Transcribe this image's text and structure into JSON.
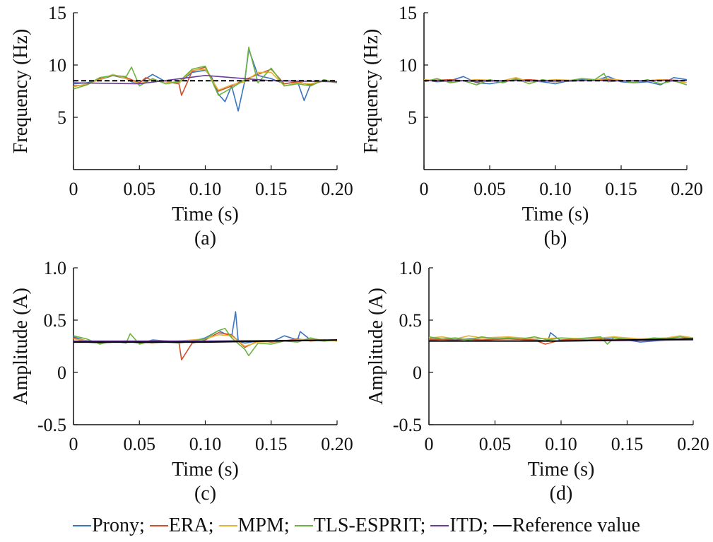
{
  "chart_data": [
    {
      "id": "a",
      "type": "line",
      "panel_label": "(a)",
      "xlabel": "Time (s)",
      "ylabel": "Frequency (Hz)",
      "xlim": [
        0,
        0.2
      ],
      "ylim": [
        0,
        15
      ],
      "xticks": [
        0,
        0.05,
        0.1,
        0.15,
        0.2
      ],
      "xtick_labels": [
        "0",
        "0.05",
        "0.10",
        "0.15",
        "0.20"
      ],
      "yticks": [
        5,
        10,
        15
      ],
      "ytick_labels": [
        "5",
        "10",
        "15"
      ],
      "reference": {
        "name": "Reference value",
        "style": "dashed",
        "x": [
          0,
          0.2
        ],
        "values": [
          8.5,
          8.5
        ]
      },
      "series": [
        {
          "name": "Prony",
          "x": [
            0,
            0.01,
            0.02,
            0.03,
            0.04,
            0.044,
            0.05,
            0.06,
            0.07,
            0.08,
            0.09,
            0.1,
            0.105,
            0.11,
            0.115,
            0.12,
            0.125,
            0.13,
            0.133,
            0.14,
            0.15,
            0.16,
            0.17,
            0.175,
            0.18,
            0.19,
            0.2
          ],
          "values": [
            8.2,
            8.3,
            8.6,
            9.0,
            8.7,
            8.4,
            8.3,
            9.1,
            8.4,
            8.3,
            9.3,
            9.5,
            8.8,
            7.2,
            6.5,
            8.0,
            5.6,
            8.5,
            11.5,
            9.0,
            8.7,
            8.2,
            8.4,
            6.6,
            8.2,
            8.5,
            8.4
          ]
        },
        {
          "name": "ERA",
          "x": [
            0,
            0.01,
            0.02,
            0.03,
            0.04,
            0.05,
            0.055,
            0.06,
            0.07,
            0.08,
            0.082,
            0.09,
            0.1,
            0.11,
            0.12,
            0.13,
            0.14,
            0.15,
            0.16,
            0.17,
            0.18,
            0.19,
            0.2
          ],
          "values": [
            8.0,
            8.1,
            8.7,
            9.0,
            8.8,
            8.3,
            8.8,
            8.5,
            8.4,
            8.2,
            7.1,
            9.4,
            9.8,
            7.5,
            8.0,
            8.6,
            9.1,
            9.6,
            8.2,
            8.4,
            8.1,
            8.5,
            8.4
          ]
        },
        {
          "name": "MPM",
          "x": [
            0,
            0.01,
            0.02,
            0.03,
            0.04,
            0.05,
            0.06,
            0.07,
            0.08,
            0.09,
            0.1,
            0.11,
            0.12,
            0.13,
            0.14,
            0.15,
            0.16,
            0.17,
            0.18,
            0.19,
            0.2
          ],
          "values": [
            7.9,
            8.2,
            8.6,
            9.1,
            8.7,
            8.2,
            8.6,
            8.4,
            8.3,
            9.5,
            9.6,
            7.6,
            8.1,
            8.4,
            9.3,
            9.3,
            8.0,
            8.3,
            8.2,
            8.5,
            8.3
          ]
        },
        {
          "name": "TLS-ESPRIT",
          "x": [
            0,
            0.01,
            0.02,
            0.03,
            0.04,
            0.044,
            0.05,
            0.06,
            0.07,
            0.08,
            0.09,
            0.1,
            0.11,
            0.12,
            0.13,
            0.133,
            0.14,
            0.15,
            0.16,
            0.17,
            0.18,
            0.19,
            0.2
          ],
          "values": [
            7.7,
            8.1,
            8.8,
            9.0,
            8.9,
            9.8,
            8.0,
            8.7,
            8.2,
            8.4,
            9.6,
            9.9,
            7.1,
            7.8,
            8.6,
            11.7,
            8.3,
            9.7,
            8.0,
            8.2,
            8.0,
            8.6,
            8.3
          ]
        },
        {
          "name": "ITD",
          "x": [
            0,
            0.05,
            0.1,
            0.15,
            0.2
          ],
          "values": [
            8.3,
            8.2,
            9.0,
            8.5,
            8.4
          ]
        }
      ]
    },
    {
      "id": "b",
      "type": "line",
      "panel_label": "(b)",
      "xlabel": "Time (s)",
      "ylabel": "Frequency (Hz)",
      "xlim": [
        0,
        0.2
      ],
      "ylim": [
        0,
        15
      ],
      "xticks": [
        0,
        0.05,
        0.1,
        0.15,
        0.2
      ],
      "xtick_labels": [
        "0",
        "0.05",
        "0.10",
        "0.15",
        "0.20"
      ],
      "yticks": [
        5,
        10,
        15
      ],
      "ytick_labels": [
        "5",
        "10",
        "15"
      ],
      "reference": {
        "name": "Reference value",
        "style": "dashed",
        "x": [
          0,
          0.2
        ],
        "values": [
          8.5,
          8.5
        ]
      },
      "series": [
        {
          "name": "Prony",
          "x": [
            0,
            0.01,
            0.02,
            0.03,
            0.04,
            0.05,
            0.06,
            0.07,
            0.08,
            0.09,
            0.1,
            0.11,
            0.12,
            0.13,
            0.14,
            0.15,
            0.16,
            0.17,
            0.18,
            0.19,
            0.2
          ],
          "values": [
            8.6,
            8.4,
            8.5,
            8.9,
            8.3,
            8.2,
            8.4,
            8.6,
            8.5,
            8.4,
            8.2,
            8.5,
            8.6,
            8.5,
            8.9,
            8.4,
            8.3,
            8.4,
            8.1,
            8.8,
            8.6
          ]
        },
        {
          "name": "ERA",
          "x": [
            0,
            0.02,
            0.04,
            0.06,
            0.08,
            0.1,
            0.12,
            0.14,
            0.16,
            0.18,
            0.2
          ],
          "values": [
            8.5,
            8.6,
            8.4,
            8.5,
            8.6,
            8.4,
            8.5,
            8.6,
            8.4,
            8.6,
            8.5
          ]
        },
        {
          "name": "MPM",
          "x": [
            0,
            0.02,
            0.04,
            0.06,
            0.07,
            0.08,
            0.1,
            0.12,
            0.14,
            0.16,
            0.18,
            0.2
          ],
          "values": [
            8.6,
            8.4,
            8.6,
            8.5,
            8.8,
            8.4,
            8.6,
            8.5,
            8.7,
            8.4,
            8.6,
            8.3
          ]
        },
        {
          "name": "TLS-ESPRIT",
          "x": [
            0,
            0.01,
            0.02,
            0.03,
            0.04,
            0.05,
            0.06,
            0.07,
            0.08,
            0.09,
            0.1,
            0.11,
            0.12,
            0.13,
            0.137,
            0.14,
            0.15,
            0.16,
            0.17,
            0.18,
            0.19,
            0.2
          ],
          "values": [
            8.4,
            8.7,
            8.3,
            8.5,
            8.1,
            8.6,
            8.3,
            8.7,
            8.2,
            8.6,
            8.4,
            8.5,
            8.7,
            8.6,
            9.2,
            8.4,
            8.5,
            8.3,
            8.6,
            8.2,
            8.5,
            8.1
          ]
        },
        {
          "name": "ITD",
          "x": [
            0,
            0.1,
            0.2
          ],
          "values": [
            8.5,
            8.5,
            8.5
          ]
        }
      ]
    },
    {
      "id": "c",
      "type": "line",
      "panel_label": "(c)",
      "xlabel": "Time (s)",
      "ylabel": "Amplitude (A)",
      "xlim": [
        0,
        0.2
      ],
      "ylim": [
        -0.5,
        1.0
      ],
      "xticks": [
        0,
        0.05,
        0.1,
        0.15,
        0.2
      ],
      "xtick_labels": [
        "0",
        "0.05",
        "0.10",
        "0.15",
        "0.20"
      ],
      "yticks": [
        -0.5,
        0,
        0.5,
        1.0
      ],
      "ytick_labels": [
        "-0.5",
        "0",
        "0.5",
        "1.0"
      ],
      "reference": {
        "name": "Reference value",
        "style": "solid",
        "x": [
          0,
          0.05,
          0.1,
          0.15,
          0.2
        ],
        "values": [
          0.29,
          0.29,
          0.29,
          0.3,
          0.31
        ]
      },
      "series": [
        {
          "name": "Prony",
          "x": [
            0,
            0.01,
            0.02,
            0.03,
            0.04,
            0.05,
            0.06,
            0.07,
            0.08,
            0.09,
            0.1,
            0.11,
            0.12,
            0.123,
            0.125,
            0.13,
            0.14,
            0.15,
            0.16,
            0.17,
            0.172,
            0.18,
            0.19,
            0.2
          ],
          "values": [
            0.34,
            0.3,
            0.28,
            0.29,
            0.3,
            0.28,
            0.31,
            0.3,
            0.29,
            0.3,
            0.33,
            0.4,
            0.34,
            0.58,
            0.3,
            0.28,
            0.3,
            0.29,
            0.35,
            0.31,
            0.39,
            0.31,
            0.3,
            0.31
          ]
        },
        {
          "name": "ERA",
          "x": [
            0,
            0.01,
            0.02,
            0.03,
            0.04,
            0.05,
            0.06,
            0.07,
            0.08,
            0.082,
            0.09,
            0.1,
            0.11,
            0.12,
            0.13,
            0.14,
            0.15,
            0.16,
            0.17,
            0.18,
            0.19,
            0.2
          ],
          "values": [
            0.33,
            0.29,
            0.28,
            0.29,
            0.3,
            0.29,
            0.28,
            0.3,
            0.29,
            0.12,
            0.28,
            0.31,
            0.38,
            0.36,
            0.24,
            0.3,
            0.29,
            0.3,
            0.32,
            0.3,
            0.31,
            0.3
          ]
        },
        {
          "name": "MPM",
          "x": [
            0,
            0.02,
            0.04,
            0.06,
            0.08,
            0.1,
            0.11,
            0.12,
            0.13,
            0.14,
            0.16,
            0.18,
            0.2
          ],
          "values": [
            0.32,
            0.29,
            0.3,
            0.28,
            0.3,
            0.32,
            0.36,
            0.35,
            0.25,
            0.29,
            0.3,
            0.32,
            0.3
          ]
        },
        {
          "name": "TLS-ESPRIT",
          "x": [
            0,
            0.01,
            0.02,
            0.03,
            0.04,
            0.043,
            0.05,
            0.06,
            0.07,
            0.08,
            0.09,
            0.1,
            0.11,
            0.115,
            0.12,
            0.13,
            0.133,
            0.14,
            0.15,
            0.16,
            0.17,
            0.18,
            0.19,
            0.2
          ],
          "values": [
            0.35,
            0.32,
            0.27,
            0.3,
            0.28,
            0.37,
            0.27,
            0.3,
            0.29,
            0.28,
            0.3,
            0.32,
            0.4,
            0.42,
            0.33,
            0.22,
            0.16,
            0.28,
            0.27,
            0.3,
            0.29,
            0.33,
            0.3,
            0.31
          ]
        },
        {
          "name": "ITD",
          "x": [
            0,
            0.1,
            0.2
          ],
          "values": [
            0.3,
            0.3,
            0.31
          ]
        }
      ]
    },
    {
      "id": "d",
      "type": "line",
      "panel_label": "(d)",
      "xlabel": "Time (s)",
      "ylabel": "Amplitude (A)",
      "xlim": [
        0,
        0.2
      ],
      "ylim": [
        -0.5,
        1.0
      ],
      "xticks": [
        0,
        0.05,
        0.1,
        0.15,
        0.2
      ],
      "xtick_labels": [
        "0",
        "0.05",
        "0.10",
        "0.15",
        "0.20"
      ],
      "yticks": [
        -0.5,
        0,
        0.5,
        1.0
      ],
      "ytick_labels": [
        "-0.5",
        "0",
        "0.5",
        "1.0"
      ],
      "reference": {
        "name": "Reference value",
        "style": "solid",
        "x": [
          0,
          0.05,
          0.1,
          0.15,
          0.2
        ],
        "values": [
          0.3,
          0.3,
          0.3,
          0.31,
          0.32
        ]
      },
      "series": [
        {
          "name": "Prony",
          "x": [
            0,
            0.02,
            0.04,
            0.06,
            0.08,
            0.09,
            0.092,
            0.1,
            0.12,
            0.14,
            0.16,
            0.18,
            0.2
          ],
          "values": [
            0.32,
            0.31,
            0.33,
            0.32,
            0.31,
            0.3,
            0.38,
            0.3,
            0.31,
            0.33,
            0.29,
            0.31,
            0.32
          ]
        },
        {
          "name": "ERA",
          "x": [
            0,
            0.02,
            0.04,
            0.06,
            0.08,
            0.088,
            0.1,
            0.12,
            0.14,
            0.16,
            0.18,
            0.2
          ],
          "values": [
            0.31,
            0.32,
            0.31,
            0.32,
            0.31,
            0.27,
            0.31,
            0.32,
            0.31,
            0.32,
            0.31,
            0.33
          ]
        },
        {
          "name": "MPM",
          "x": [
            0,
            0.01,
            0.02,
            0.03,
            0.04,
            0.06,
            0.08,
            0.1,
            0.12,
            0.14,
            0.16,
            0.18,
            0.19,
            0.2
          ],
          "values": [
            0.33,
            0.34,
            0.32,
            0.35,
            0.33,
            0.34,
            0.32,
            0.33,
            0.32,
            0.34,
            0.32,
            0.33,
            0.35,
            0.33
          ]
        },
        {
          "name": "TLS-ESPRIT",
          "x": [
            0,
            0.01,
            0.02,
            0.03,
            0.04,
            0.05,
            0.06,
            0.07,
            0.08,
            0.09,
            0.1,
            0.11,
            0.12,
            0.13,
            0.135,
            0.14,
            0.15,
            0.16,
            0.17,
            0.18,
            0.19,
            0.2
          ],
          "values": [
            0.34,
            0.32,
            0.33,
            0.31,
            0.34,
            0.32,
            0.33,
            0.32,
            0.34,
            0.31,
            0.33,
            0.32,
            0.33,
            0.34,
            0.27,
            0.33,
            0.32,
            0.31,
            0.33,
            0.32,
            0.34,
            0.32
          ]
        },
        {
          "name": "ITD",
          "x": [
            0,
            0.1,
            0.2
          ],
          "values": [
            0.3,
            0.3,
            0.31
          ]
        }
      ]
    }
  ],
  "colors": {
    "Prony": "#3b75c0",
    "ERA": "#d0502a",
    "MPM": "#e6b23a",
    "TLS-ESPRIT": "#6db33f",
    "ITD": "#6a3d9a",
    "Reference value": "#000000"
  },
  "legend": [
    {
      "label": "Prony;",
      "color": "#3b75c0"
    },
    {
      "label": "ERA;",
      "color": "#d0502a"
    },
    {
      "label": "MPM;",
      "color": "#e6b23a"
    },
    {
      "label": "TLS-ESPRIT;",
      "color": "#6db33f"
    },
    {
      "label": "ITD;",
      "color": "#6a3d9a"
    },
    {
      "label": "Reference value",
      "color": "#000000"
    }
  ]
}
